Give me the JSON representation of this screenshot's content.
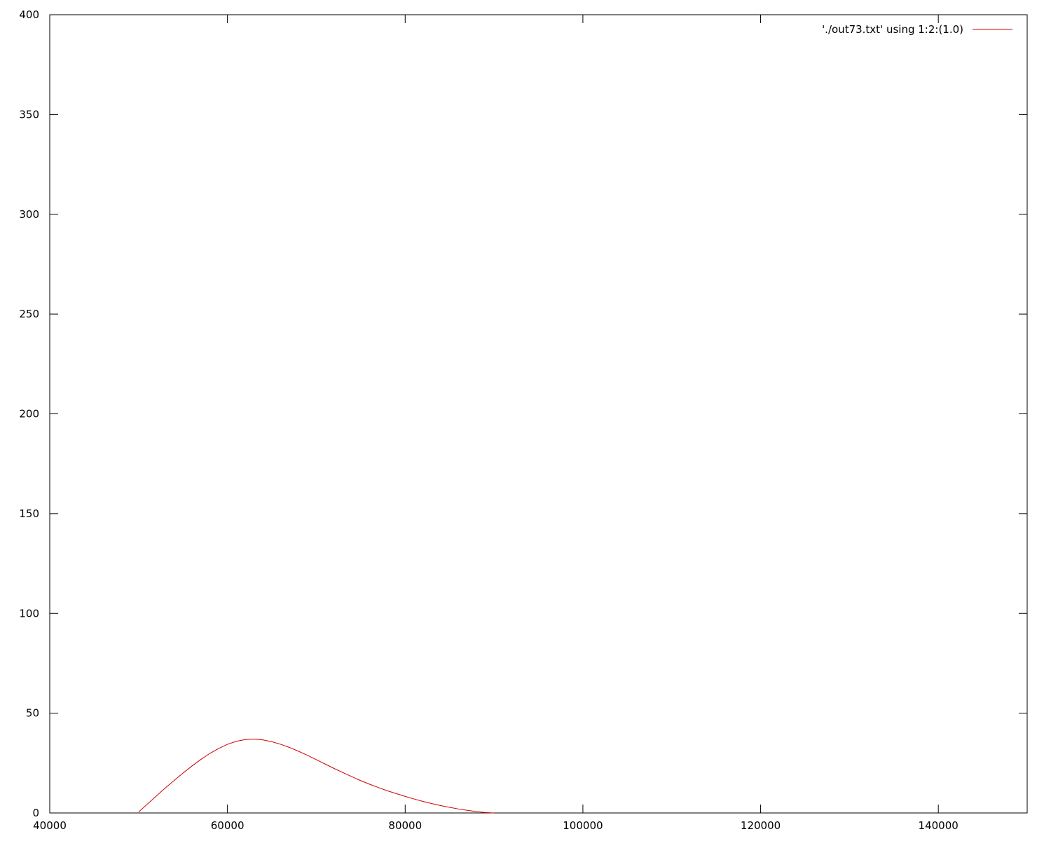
{
  "chart_data": {
    "type": "line",
    "title": "",
    "xlabel": "",
    "ylabel": "",
    "xlim": [
      40000,
      150000
    ],
    "ylim": [
      0,
      400
    ],
    "x_ticks": [
      "40000",
      "60000",
      "80000",
      "100000",
      "120000",
      "140000"
    ],
    "y_ticks": [
      "0",
      "50",
      "100",
      "150",
      "200",
      "250",
      "300",
      "350",
      "400"
    ],
    "grid": false,
    "legend_position": "top-right",
    "series": [
      {
        "name": "'./out73.txt' using 1:2:(1.0)",
        "color": "#cc0000",
        "x": [
          50000,
          51000,
          52000,
          53000,
          54000,
          55000,
          56000,
          57000,
          58000,
          59000,
          60000,
          61000,
          62000,
          63000,
          64000,
          65000,
          66000,
          67000,
          68000,
          69000,
          70000,
          71000,
          72000,
          73000,
          74000,
          75000,
          76000,
          77000,
          78000,
          79000,
          80000,
          81000,
          82000,
          83000,
          84000,
          85000,
          86000,
          87000,
          88000,
          89000,
          90000
        ],
        "y": [
          0.5,
          4.5,
          8.5,
          12.5,
          16.3,
          20,
          23.5,
          26.8,
          29.8,
          32.3,
          34.4,
          35.9,
          36.8,
          37.0,
          36.6,
          35.7,
          34.4,
          32.8,
          30.9,
          28.9,
          26.7,
          24.5,
          22.3,
          20.2,
          18.2,
          16.2,
          14.4,
          12.7,
          11.1,
          9.7,
          8.3,
          7.0,
          5.8,
          4.7,
          3.7,
          2.8,
          2.0,
          1.3,
          0.7,
          0.2,
          0.0
        ]
      }
    ]
  }
}
